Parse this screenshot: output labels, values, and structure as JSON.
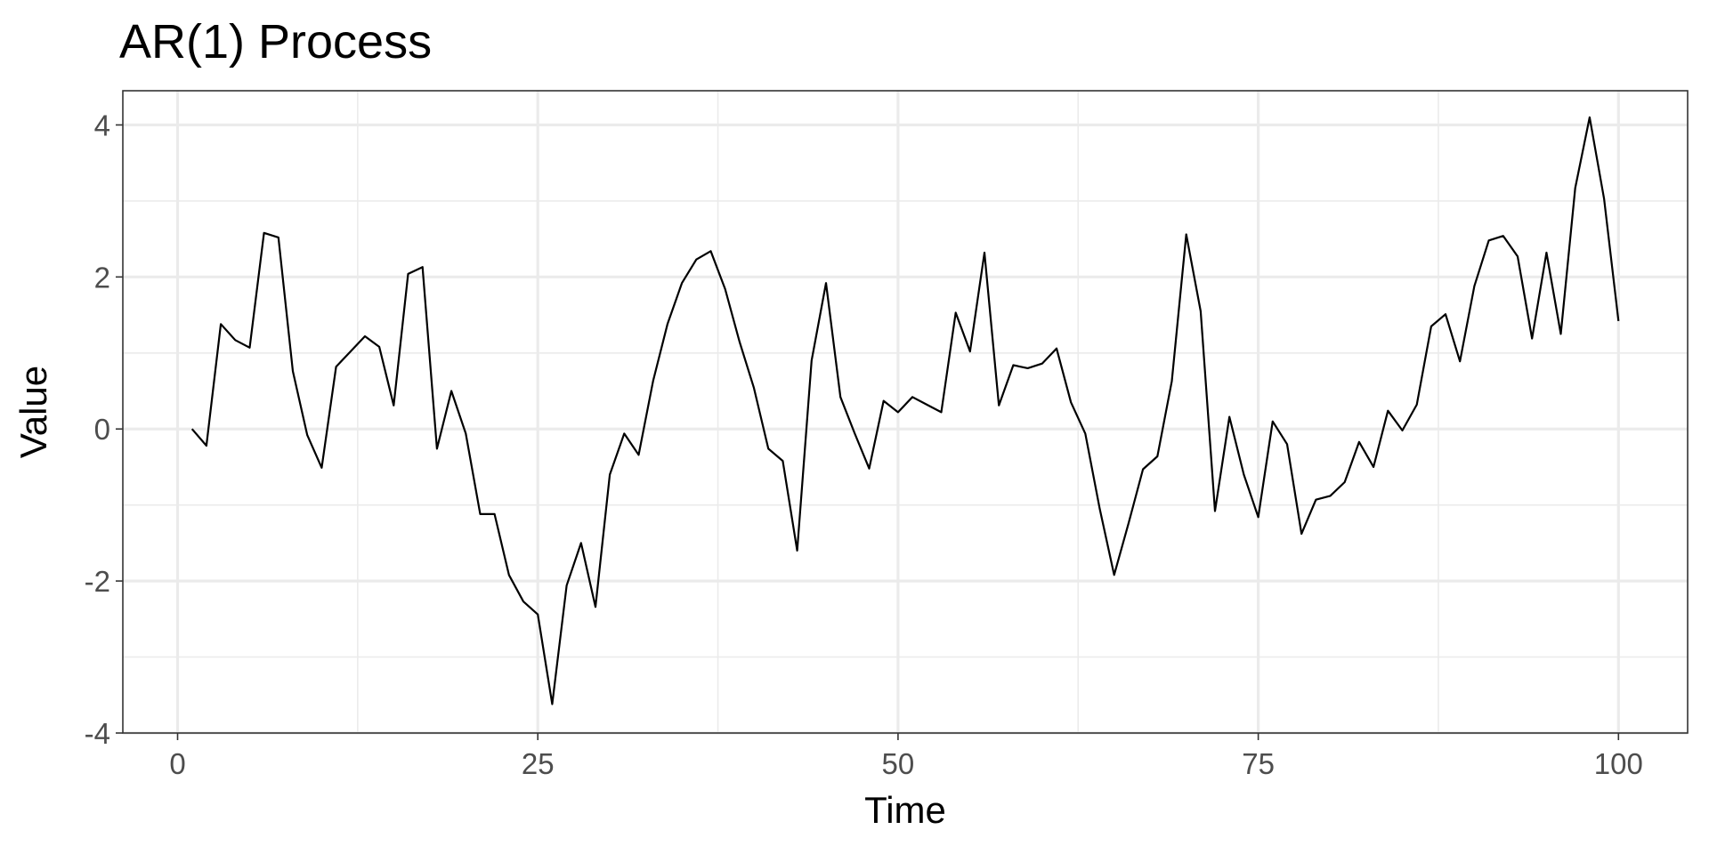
{
  "chart_data": {
    "type": "line",
    "title": "AR(1) Process",
    "xlabel": "Time",
    "ylabel": "Value",
    "xlim": [
      -3.8,
      104.8
    ],
    "ylim": [
      -4,
      4.45
    ],
    "xticks": [
      0,
      25,
      50,
      75,
      100
    ],
    "xtick_labels": [
      "0",
      "25",
      "50",
      "75",
      "100"
    ],
    "yticks": [
      -4,
      -2,
      0,
      2,
      4
    ],
    "ytick_labels": [
      "-4",
      "-2",
      "0",
      "2",
      "4"
    ],
    "x_minor": [
      12.5,
      37.5,
      62.5,
      87.5
    ],
    "y_minor": [
      -3,
      -1,
      1,
      3
    ],
    "grid": true,
    "legend": "none",
    "colors": {
      "line": "#000000",
      "grid": "#ebebeb",
      "panel_border": "#333333",
      "tick_text": "#4d4d4d"
    },
    "series": [
      {
        "x": [
          1,
          2,
          3,
          4,
          5,
          6,
          7,
          8,
          9,
          10,
          11,
          12,
          13,
          14,
          15,
          16,
          17,
          18,
          19,
          20,
          21,
          22,
          23,
          24,
          25,
          26,
          27,
          28,
          29,
          30,
          31,
          32,
          33,
          34,
          35,
          36,
          37,
          38,
          39,
          40,
          41,
          42,
          43,
          44,
          45,
          46,
          47,
          48,
          49,
          50,
          51,
          52,
          53,
          54,
          55,
          56,
          57,
          58,
          59,
          60,
          61,
          62,
          63,
          64,
          65,
          66,
          67,
          68,
          69,
          70,
          71,
          72,
          73,
          74,
          75,
          76,
          77,
          78,
          79,
          80,
          81,
          82,
          83,
          84,
          85,
          86,
          87,
          88,
          89,
          90,
          91,
          92,
          93,
          94,
          95,
          96,
          97,
          98,
          99,
          100
        ],
        "y": [
          0.0,
          -0.22,
          1.38,
          1.17,
          1.07,
          2.58,
          2.52,
          0.76,
          -0.08,
          -0.51,
          0.82,
          1.02,
          1.22,
          1.08,
          0.31,
          2.04,
          2.13,
          -0.26,
          0.5,
          -0.06,
          -1.12,
          -1.12,
          -1.92,
          -2.27,
          -2.44,
          -3.62,
          -2.06,
          -1.5,
          -2.34,
          -0.6,
          -0.06,
          -0.34,
          0.63,
          1.38,
          1.92,
          2.23,
          2.34,
          1.84,
          1.15,
          0.54,
          -0.26,
          -0.42,
          -1.6,
          0.9,
          1.92,
          0.42,
          -0.06,
          -0.52,
          0.37,
          0.22,
          0.42,
          0.32,
          0.22,
          1.53,
          1.02,
          2.32,
          0.31,
          0.84,
          0.8,
          0.86,
          1.06,
          0.35,
          -0.06,
          -1.05,
          -1.92,
          -1.24,
          -0.53,
          -0.36,
          0.63,
          2.56,
          1.55,
          -1.08,
          0.16,
          -0.6,
          -1.16,
          0.1,
          -0.2,
          -1.38,
          -0.93,
          -0.88,
          -0.7,
          -0.17,
          -0.5,
          0.24,
          -0.02,
          0.32,
          1.35,
          1.51,
          0.89,
          1.88,
          2.48,
          2.54,
          2.27,
          1.19,
          2.32,
          1.25,
          3.17,
          4.1,
          3.03,
          1.42
        ]
      }
    ]
  }
}
